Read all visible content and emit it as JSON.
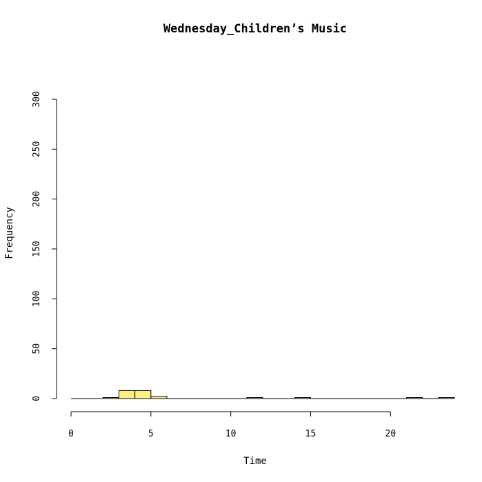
{
  "chart_data": {
    "type": "bar",
    "title": "Wednesday_Children’s Music",
    "xlabel": "Time",
    "ylabel": "Frequency",
    "xlim": [
      0,
      24
    ],
    "ylim": [
      0,
      300
    ],
    "xticks": [
      0,
      5,
      10,
      15,
      20
    ],
    "yticks": [
      0,
      50,
      100,
      150,
      200,
      250,
      300
    ],
    "bar_color": "#FFEE88",
    "bin_width": 1,
    "bins": [
      {
        "start": 0,
        "end": 1,
        "count": 0
      },
      {
        "start": 1,
        "end": 2,
        "count": 0
      },
      {
        "start": 2,
        "end": 3,
        "count": 1
      },
      {
        "start": 3,
        "end": 4,
        "count": 8
      },
      {
        "start": 4,
        "end": 5,
        "count": 8
      },
      {
        "start": 5,
        "end": 6,
        "count": 2
      },
      {
        "start": 6,
        "end": 7,
        "count": 0
      },
      {
        "start": 7,
        "end": 8,
        "count": 0
      },
      {
        "start": 8,
        "end": 9,
        "count": 0
      },
      {
        "start": 9,
        "end": 10,
        "count": 0
      },
      {
        "start": 10,
        "end": 11,
        "count": 0
      },
      {
        "start": 11,
        "end": 12,
        "count": 1
      },
      {
        "start": 12,
        "end": 13,
        "count": 0
      },
      {
        "start": 13,
        "end": 14,
        "count": 0
      },
      {
        "start": 14,
        "end": 15,
        "count": 1
      },
      {
        "start": 15,
        "end": 16,
        "count": 0
      },
      {
        "start": 16,
        "end": 17,
        "count": 0
      },
      {
        "start": 17,
        "end": 18,
        "count": 0
      },
      {
        "start": 18,
        "end": 19,
        "count": 0
      },
      {
        "start": 19,
        "end": 20,
        "count": 0
      },
      {
        "start": 20,
        "end": 21,
        "count": 0
      },
      {
        "start": 21,
        "end": 22,
        "count": 1
      },
      {
        "start": 22,
        "end": 23,
        "count": 0
      },
      {
        "start": 23,
        "end": 24,
        "count": 1
      }
    ],
    "grid": false,
    "legend": "none"
  }
}
